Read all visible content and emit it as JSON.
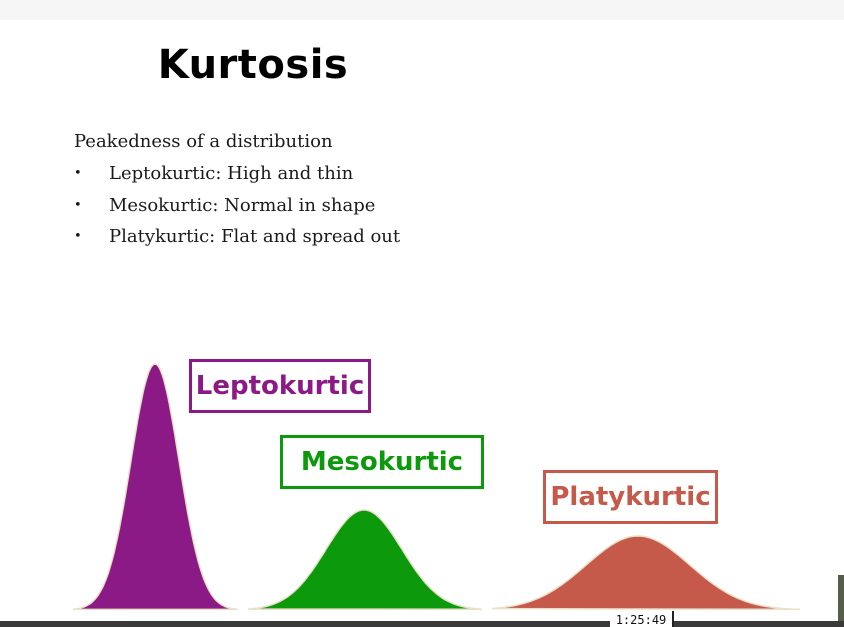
{
  "slide": {
    "title": "Kurtosis",
    "subtitle": "Peakedness of a distribution",
    "bullets": [
      {
        "marker": "•",
        "text": "Leptokurtic:  High and thin"
      },
      {
        "marker": "•",
        "text": "Mesokurtic:  Normal in shape"
      },
      {
        "marker": "•",
        "text": "Platykurtic:  Flat and spread out"
      }
    ]
  },
  "distributions": {
    "leptokurtic": {
      "label": "Leptokurtic",
      "color": "#8b1a86"
    },
    "mesokurtic": {
      "label": "Mesokurtic",
      "color": "#0c9a0c"
    },
    "platykurtic": {
      "label": "Platykurtic",
      "color": "#c55a4a"
    }
  },
  "player": {
    "timestamp": "1:25:49",
    "progress": 0.725
  }
}
